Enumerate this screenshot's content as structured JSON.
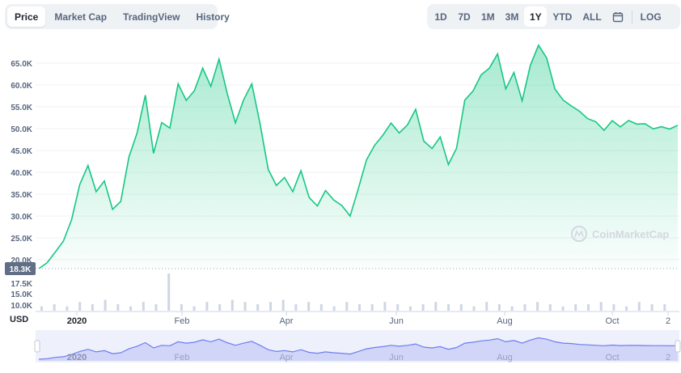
{
  "tabs": [
    {
      "label": "Price"
    },
    {
      "label": "Market Cap"
    },
    {
      "label": "TradingView"
    },
    {
      "label": "History"
    }
  ],
  "ranges": [
    {
      "label": "1D"
    },
    {
      "label": "7D"
    },
    {
      "label": "1M"
    },
    {
      "label": "3M"
    },
    {
      "label": "1Y"
    },
    {
      "label": "YTD"
    },
    {
      "label": "ALL"
    }
  ],
  "log_label": "LOG",
  "watermark": "CoinMarketCap",
  "currency": "USD",
  "current_price_badge": "18.3K",
  "colors": {
    "accent": "#16c784",
    "navigator": "#6c7ef0"
  },
  "chart_data": {
    "type": "area",
    "y_ticks": [
      "65.0K",
      "60.0K",
      "55.0K",
      "50.0K",
      "45.0K",
      "40.0K",
      "35.0K",
      "30.0K",
      "25.0K",
      "20.0K"
    ],
    "volume_ticks": [
      "17.5K",
      "15.0K",
      "10.0K"
    ],
    "x_ticks": [
      "2020",
      "Feb",
      "Apr",
      "Jun",
      "Aug",
      "Oct",
      "2"
    ],
    "ylim": [
      18300,
      68000
    ],
    "series": [
      {
        "x": [
          "2019-12",
          "2019-12",
          "2020-01",
          "2020-01",
          "2020-01",
          "2020-01",
          "2020-01",
          "2020-01",
          "2020-01",
          "2020-01",
          "2020-01",
          "2020-01",
          "2020-02",
          "2020-02",
          "2020-02",
          "2020-02",
          "2020-02",
          "2020-02",
          "2020-02",
          "2020-03",
          "2020-03",
          "2020-03",
          "2020-03",
          "2020-03",
          "2020-03",
          "2020-03",
          "2020-04",
          "2020-04",
          "2020-04",
          "2020-04",
          "2020-04",
          "2020-04",
          "2020-05",
          "2020-05",
          "2020-05",
          "2020-05",
          "2020-05",
          "2020-05",
          "2020-05",
          "2020-05",
          "2020-06",
          "2020-06",
          "2020-06",
          "2020-06",
          "2020-06",
          "2020-06",
          "2020-07",
          "2020-07",
          "2020-07",
          "2020-07",
          "2020-07",
          "2020-07",
          "2020-08",
          "2020-08",
          "2020-08",
          "2020-08",
          "2020-08",
          "2020-08",
          "2020-08",
          "2020-08",
          "2020-09",
          "2020-09",
          "2020-09",
          "2020-09",
          "2020-09",
          "2020-09",
          "2020-10",
          "2020-10",
          "2020-10",
          "2020-10",
          "2020-10",
          "2020-10",
          "2020-11",
          "2020-11",
          "2020-11",
          "2020-11",
          "2020-11",
          "2020-11",
          "2020-12"
        ],
        "values": [
          18300,
          19500,
          22500,
          24000,
          29000,
          36000,
          41000,
          35000,
          38000,
          31000,
          33000,
          42000,
          48000,
          56000,
          44000,
          50000,
          49000,
          58000,
          55000,
          57000,
          62500,
          58000,
          64000,
          56000,
          50000,
          55000,
          59000,
          50000,
          40000,
          36000,
          38000,
          35000,
          40000,
          34000,
          32000,
          35000,
          33000,
          32000,
          30000,
          36000,
          42000,
          45000,
          47000,
          50000,
          48000,
          50000,
          53000,
          46000,
          44000,
          47000,
          41000,
          45000,
          55000,
          57000,
          60000,
          62000,
          65000,
          58000,
          61000,
          55000,
          62000,
          67000,
          64000,
          58000,
          55000,
          54000,
          52000,
          51000,
          50000,
          49000,
          50500,
          49500,
          50000,
          49800,
          49500,
          49300,
          49200,
          49100,
          49000
        ]
      }
    ],
    "volumes": [
      2,
      3,
      2,
      4,
      3,
      5,
      3,
      2,
      4,
      3,
      17,
      3,
      2,
      4,
      3,
      5,
      4,
      3,
      4,
      5,
      3,
      4,
      3,
      2,
      4,
      3,
      3,
      4,
      3,
      2,
      3,
      4,
      3,
      3,
      2,
      4,
      3,
      2,
      3,
      4,
      3,
      2,
      3,
      3,
      4,
      3,
      2,
      4,
      3,
      3
    ]
  }
}
